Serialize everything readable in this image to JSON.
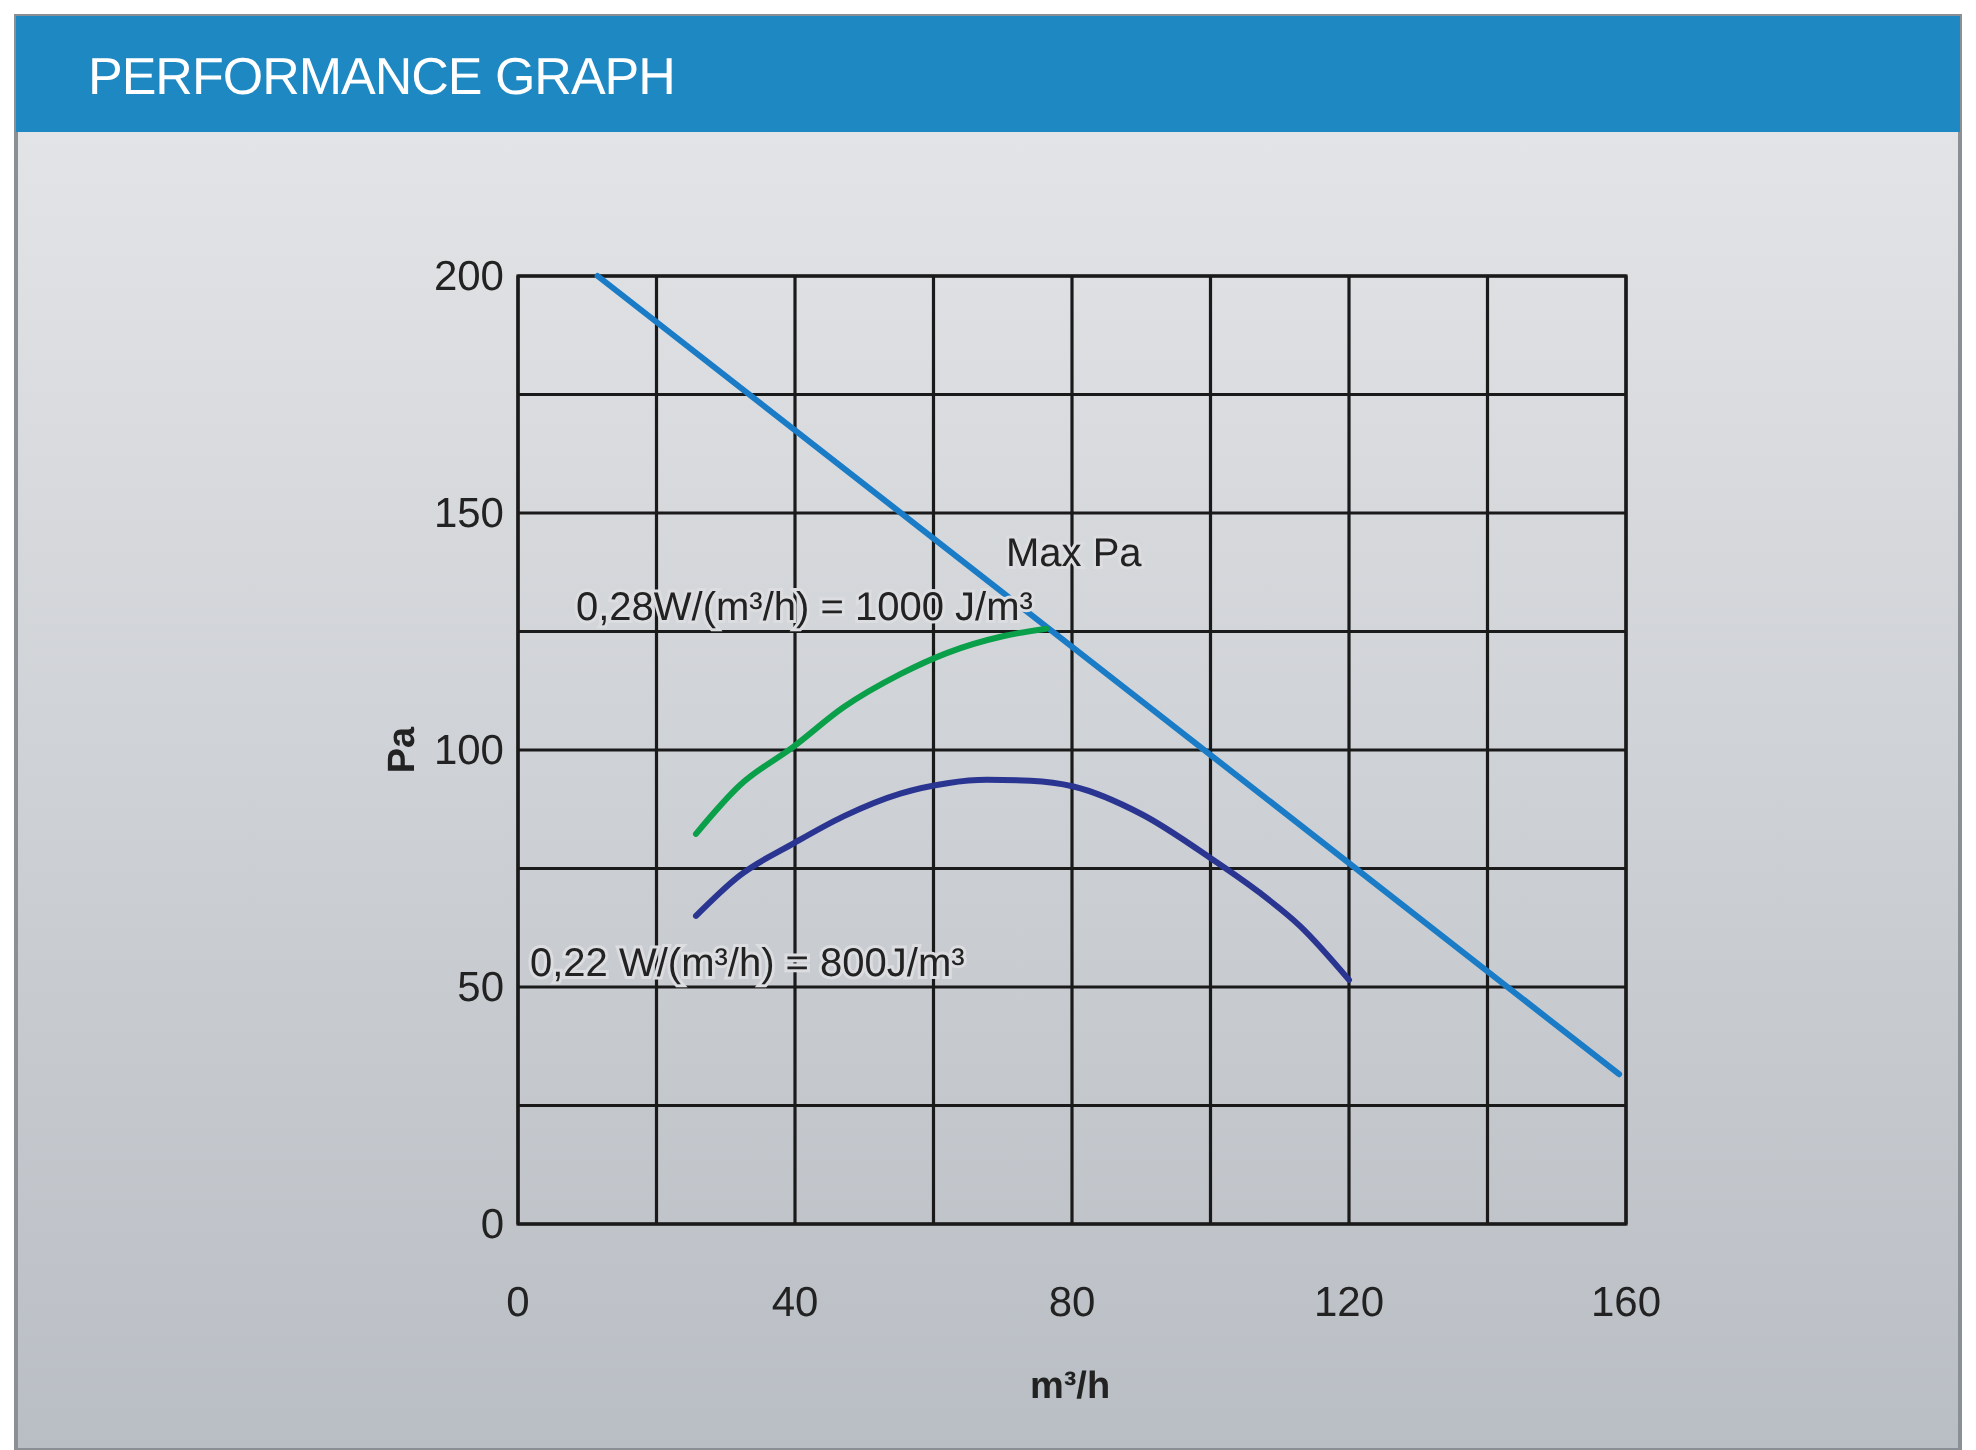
{
  "chart_data": {
    "type": "line",
    "title": "PERFORMANCE GRAPH",
    "xlabel": "m³/h",
    "ylabel": "Pa",
    "xlim": [
      0,
      160
    ],
    "xticks": [
      0,
      {
        "value": 20,
        "label": null
      },
      40,
      {
        "value": 60,
        "label": null
      },
      80,
      {
        "value": 100,
        "label": null
      },
      120,
      {
        "value": 140,
        "label": null
      },
      160
    ],
    "ylim": [
      0,
      200
    ],
    "yticks": [
      0,
      {
        "value": 25,
        "label": null
      },
      50,
      {
        "value": 75,
        "label": null
      },
      100,
      {
        "value": 125,
        "label": null
      },
      150,
      {
        "value": 175,
        "label": null
      },
      200
    ],
    "grid": true,
    "marker": "none",
    "line_style": "solid",
    "series": [
      {
        "color": "#1a7cc6",
        "x": [
          11.5,
          159
        ],
        "values": [
          200,
          31.6
        ]
      },
      {
        "color": "#0aa04a",
        "x": [
          25.7,
          32,
          39.8,
          47,
          55.2,
          62,
          70,
          76.3
        ],
        "values": [
          82.3,
          92.5,
          100.7,
          109,
          116,
          120.5,
          124,
          125.6
        ]
      },
      {
        "color": "#2a3592",
        "x": [
          25.7,
          32,
          39.8,
          47,
          55.2,
          62,
          67.7,
          74,
          80.2,
          90,
          100.4,
          107,
          112.9,
          120
        ],
        "values": [
          65,
          73.5,
          80.3,
          86,
          90.8,
          93,
          93.7,
          93.5,
          92.3,
          86.5,
          76.8,
          70,
          62.9,
          51.5
        ]
      }
    ],
    "annotations": [
      "Max Pa",
      "0,28W/(m³/h) = 1000 J/m³",
      "0,22 W/(m³/h) = 800J/m³"
    ]
  }
}
